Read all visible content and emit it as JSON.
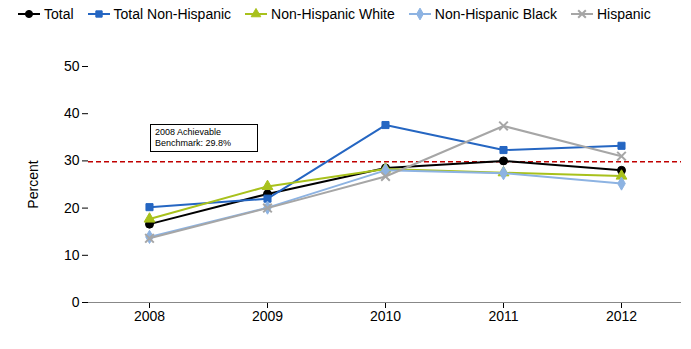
{
  "chart_data": {
    "type": "line",
    "categories": [
      "2008",
      "2009",
      "2010",
      "2011",
      "2012"
    ],
    "y_label": "Percent",
    "ylim": [
      0,
      50
    ],
    "yticks": [
      0,
      10,
      20,
      30,
      40,
      50
    ],
    "grid": false,
    "legend": "top",
    "benchmark": {
      "value": 29.8,
      "label": "2008 Achievable Benchmark: 29.8%",
      "color": "#c00000",
      "line_style": "dashed"
    },
    "series": [
      {
        "name": "Total",
        "color": "#000000",
        "marker": "circle",
        "values": [
          16.6,
          23.0,
          28.5,
          30.0,
          28.0
        ]
      },
      {
        "name": "Total Non-Hispanic",
        "color": "#2566c2",
        "marker": "square",
        "values": [
          20.2,
          22.0,
          37.6,
          32.3,
          33.2
        ]
      },
      {
        "name": "Non-Hispanic White",
        "color": "#a8c11c",
        "marker": "triangle",
        "values": [
          17.7,
          24.6,
          28.3,
          27.5,
          26.8
        ]
      },
      {
        "name": "Non-Hispanic Black",
        "color": "#8db3e2",
        "marker": "diamond",
        "values": [
          13.9,
          20.1,
          28.0,
          27.4,
          25.2
        ]
      },
      {
        "name": "Hispanic",
        "color": "#a6a6a6",
        "marker": "x",
        "values": [
          13.6,
          20.0,
          26.7,
          37.4,
          31.0
        ]
      }
    ]
  }
}
